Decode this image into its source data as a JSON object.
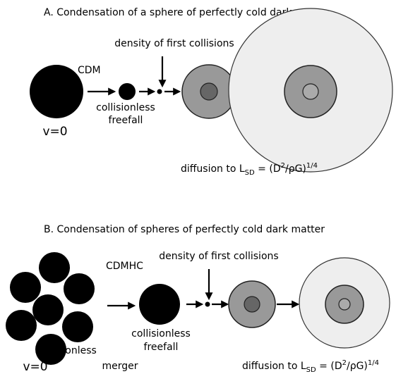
{
  "panel_a": {
    "title": "A.  Condensation of a sphere of perfectly cold dark matter",
    "label": "CDM",
    "velocity": "v=0",
    "freefall": [
      "collisionless",
      "freefall"
    ],
    "collisions": "density of first collisions",
    "formula": [
      "diffusion to L",
      "SD",
      " = (D",
      "2",
      "/ρG)",
      "1/4"
    ]
  },
  "panel_b": {
    "title": "B.  Condensation of spheres of perfectly cold dark matter",
    "label": "CDMHC",
    "velocity": "v=0",
    "merger": [
      "collisionless",
      "merger"
    ],
    "freefall": [
      "collisionless",
      "freefall"
    ],
    "collisions": "density of first collisions",
    "formula": [
      "diffusion to L",
      "SD",
      " = (D",
      "2",
      "/ρG)",
      "1/4"
    ]
  }
}
